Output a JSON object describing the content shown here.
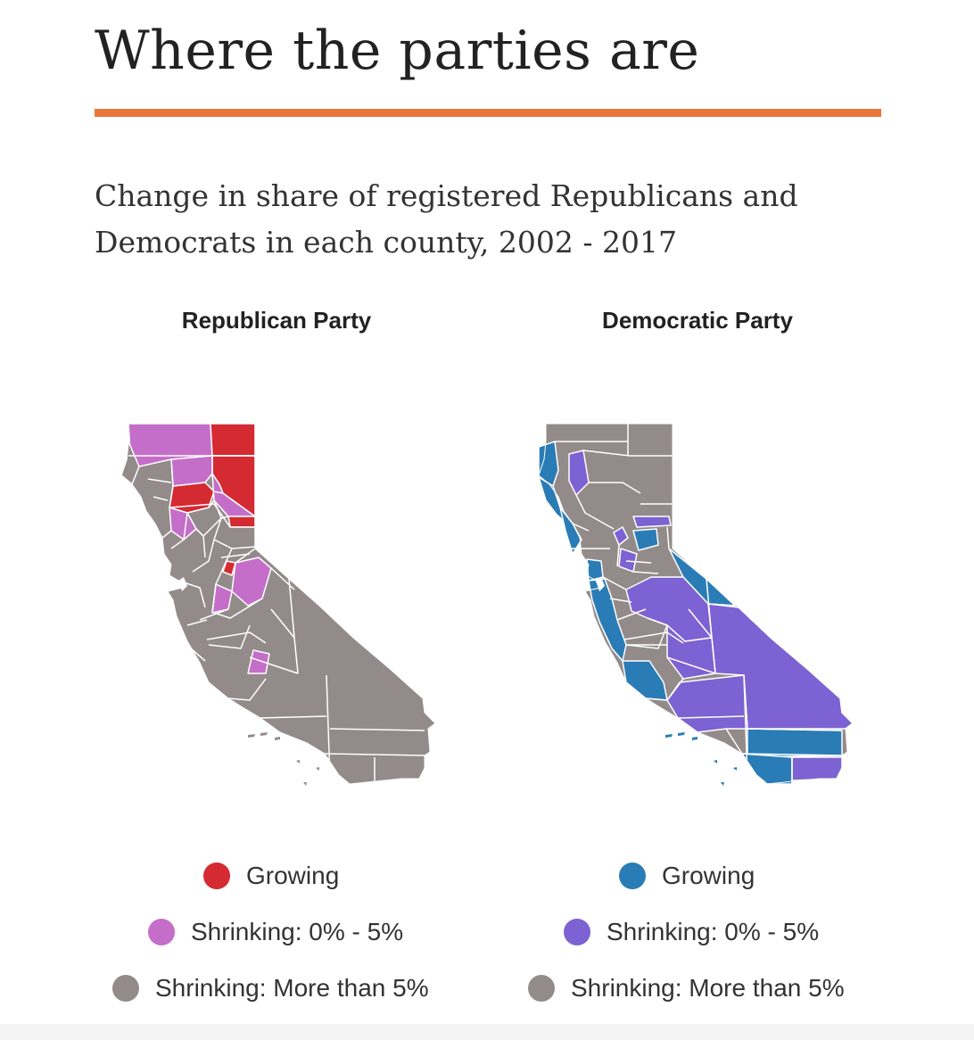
{
  "title": "Where the parties are",
  "subtitle": "Change in share of registered Republicans and Democrats in each county, 2002 - 2017",
  "colors": {
    "accent_rule": "#e8793a",
    "county_border": "#ffffff",
    "rep_growing": "#d42a32",
    "rep_shrinking_small": "#c46ec9",
    "rep_shrinking_large": "#938b8a",
    "dem_growing": "#2a7cb6",
    "dem_shrinking_small": "#7c62d2",
    "dem_shrinking_large": "#938b8a"
  },
  "maps": [
    {
      "title": "Republican Party",
      "legend": [
        {
          "label": "Growing",
          "color": "#d42a32"
        },
        {
          "label": "Shrinking: 0% - 5%",
          "color": "#c46ec9"
        },
        {
          "label": "Shrinking: More than 5%",
          "color": "#938b8a"
        }
      ]
    },
    {
      "title": "Democratic Party",
      "legend": [
        {
          "label": "Growing",
          "color": "#2a7cb6"
        },
        {
          "label": "Shrinking: 0% - 5%",
          "color": "#7c62d2"
        },
        {
          "label": "Shrinking: More than 5%",
          "color": "#938b8a"
        }
      ]
    }
  ]
}
